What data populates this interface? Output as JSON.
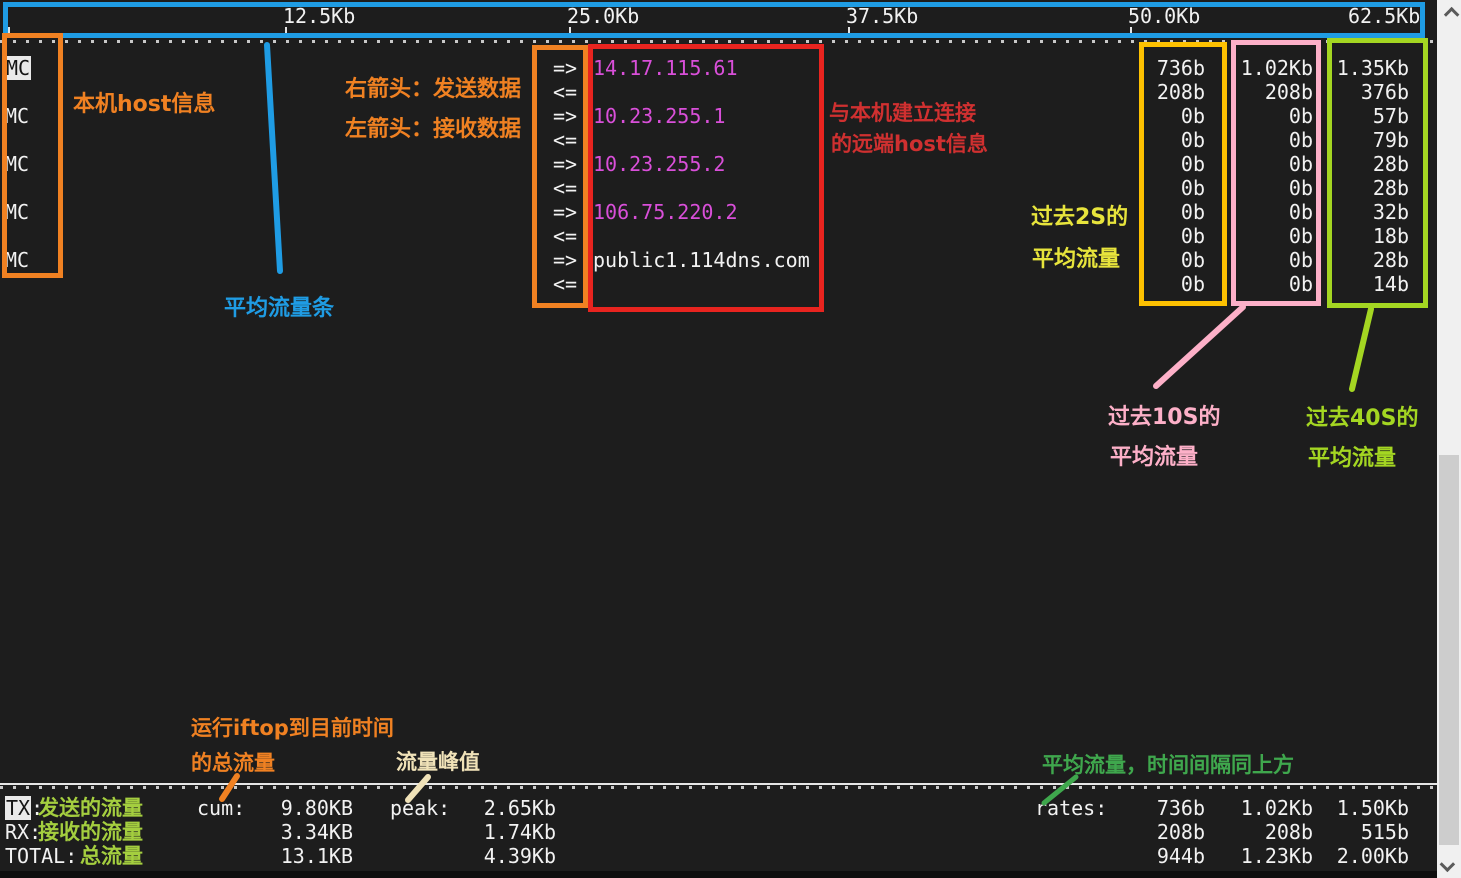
{
  "terminal": {
    "scale_labels": [
      "12.5Kb",
      "25.0Kb",
      "37.5Kb",
      "50.0Kb",
      "62.5Kb"
    ],
    "send_arrow": "=>",
    "recv_arrow": "<=",
    "connections": [
      {
        "local": "MC",
        "highlighted": true,
        "remote": "14.17.115.61",
        "remote_style": "ip",
        "tx": [
          "736b",
          "1.02Kb",
          "1.35Kb"
        ],
        "rx": [
          "208b",
          "208b",
          "376b"
        ]
      },
      {
        "local": "MC",
        "highlighted": false,
        "remote": "10.23.255.1",
        "remote_style": "ip",
        "tx": [
          "0b",
          "0b",
          "57b"
        ],
        "rx": [
          "0b",
          "0b",
          "79b"
        ]
      },
      {
        "local": "MC",
        "highlighted": false,
        "remote": "10.23.255.2",
        "remote_style": "ip",
        "tx": [
          "0b",
          "0b",
          "28b"
        ],
        "rx": [
          "0b",
          "0b",
          "28b"
        ]
      },
      {
        "local": "MC",
        "highlighted": false,
        "remote": "106.75.220.2",
        "remote_style": "ip",
        "tx": [
          "0b",
          "0b",
          "32b"
        ],
        "rx": [
          "0b",
          "0b",
          "18b"
        ]
      },
      {
        "local": "MC",
        "highlighted": false,
        "remote": "public1.114dns.com",
        "remote_style": "host",
        "tx": [
          "0b",
          "0b",
          "28b"
        ],
        "rx": [
          "0b",
          "0b",
          "14b"
        ]
      }
    ],
    "footer": {
      "cum_label": "cum:",
      "peak_label": "peak:",
      "rates_label": "rates:",
      "rows": [
        {
          "label": "TX",
          "suffix": ":",
          "zh": "发送的流量",
          "highlighted": true,
          "cum": "9.80KB",
          "peak": "2.65Kb",
          "rates": [
            "736b",
            "1.02Kb",
            "1.50Kb"
          ]
        },
        {
          "label": "RX",
          "suffix": ":",
          "zh": "接收的流量",
          "highlighted": false,
          "cum": "3.34KB",
          "peak": "1.74Kb",
          "rates": [
            "208b",
            "208b",
            "515b"
          ]
        },
        {
          "label": "TOTAL",
          "suffix": ":",
          "zh": "总流量",
          "highlighted": false,
          "cum": "13.1KB",
          "peak": "4.39Kb",
          "rates": [
            "944b",
            "1.23Kb",
            "2.00Kb"
          ]
        }
      ]
    }
  },
  "annotations": {
    "local_host": "本机host信息",
    "avg_bar": "平均流量条",
    "right_arrow": "右箭头：发送数据",
    "left_arrow": "左箭头：接收数据",
    "remote_host_line1": "与本机建立连接",
    "remote_host_line2": "的远端host信息",
    "past2s_line1": "过去2S的",
    "past2s_line2": "平均流量",
    "past10s_line1": "过去10S的",
    "past10s_line2": "平均流量",
    "past40s_line1": "过去40S的",
    "past40s_line2": "平均流量",
    "cum_note_line1": "运行iftop到目前时间",
    "cum_note_line2": "的总流量",
    "peak_note": "流量峰值",
    "rates_note": "平均流量，时间间隔同上方"
  },
  "colors": {
    "blue": "#1f9ce4",
    "orange": "#f08122",
    "red_box": "#e8241f",
    "red_text": "#d03030",
    "yellow_box": "#fdc101",
    "yellow_text": "#e7e43c",
    "pink": "#fdb0c8",
    "green_box": "#a4d622",
    "green_footer": "#a4ce3f",
    "green_note": "#3fa74d",
    "cream": "#f0e2b8",
    "magenta": "#d94fd9"
  }
}
